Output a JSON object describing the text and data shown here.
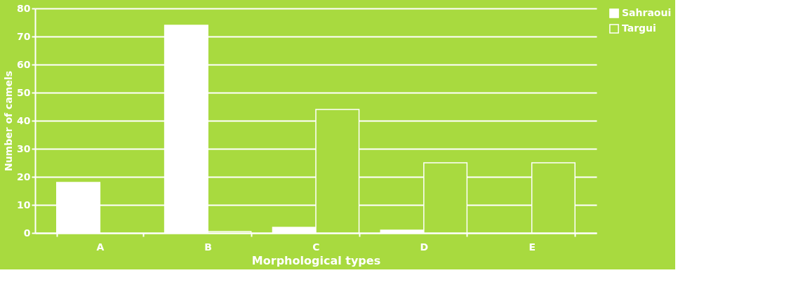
{
  "chart_data": {
    "type": "bar",
    "xlabel": "Morphological types",
    "ylabel": "Number of camels",
    "categories": [
      "A",
      "B",
      "C",
      "D",
      "E"
    ],
    "series": [
      {
        "name": "Sahraoui",
        "color": "#ffffff",
        "values": [
          18,
          74,
          2,
          1,
          null
        ]
      },
      {
        "name": "Targui",
        "color": "#a8da3f",
        "values": [
          null,
          0.5,
          44,
          25,
          25
        ]
      }
    ],
    "ylim": [
      0,
      80
    ],
    "yticks": [
      0,
      10,
      20,
      30,
      40,
      50,
      60,
      70,
      80
    ],
    "grid": "y",
    "legend": "right"
  }
}
